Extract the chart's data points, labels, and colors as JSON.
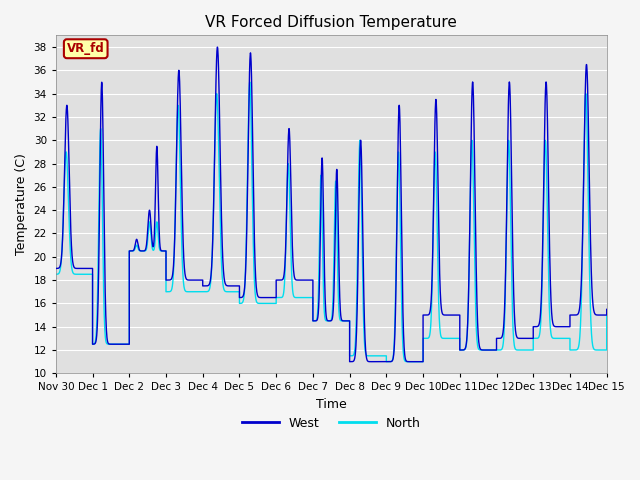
{
  "title": "VR Forced Diffusion Temperature",
  "xlabel": "Time",
  "ylabel": "Temperature (C)",
  "ylim": [
    10,
    39
  ],
  "yticks": [
    10,
    12,
    14,
    16,
    18,
    20,
    22,
    24,
    26,
    28,
    30,
    32,
    34,
    36,
    38
  ],
  "plot_bg_color": "#e0e0e0",
  "fig_bg_color": "#f5f5f5",
  "west_color": "#0000cc",
  "north_color": "#00ddee",
  "legend_label_west": "West",
  "legend_label_north": "North",
  "annotation_text": "VR_fd",
  "annotation_bg": "#ffffaa",
  "annotation_border": "#aa0000",
  "x_tick_labels": [
    "Nov 30",
    "Dec 1",
    "Dec 2",
    "Dec 3",
    "Dec 4",
    "Dec 5",
    "Dec 6",
    "Dec 7",
    "Dec 8",
    "Dec 9",
    "Dec 10",
    "Dec 11",
    "Dec 12",
    "Dec 13",
    "Dec 14",
    "Dec 15"
  ],
  "x_tick_positions": [
    0,
    1,
    2,
    3,
    4,
    5,
    6,
    7,
    8,
    9,
    10,
    11,
    12,
    13,
    14,
    15
  ]
}
